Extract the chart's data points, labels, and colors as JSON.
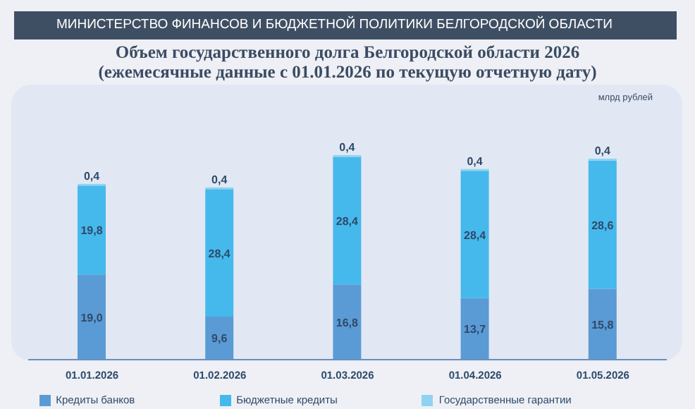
{
  "chart_data": {
    "type": "bar",
    "stacked": true,
    "title": "Объем государственного долга Белгородской области 2026",
    "subtitle": "(ежемесячные данные с 01.01.2026 по текущую отчетную дату)",
    "annotations": [
      "МИНИСТЕРСТВО ФИНАНСОВ И БЮДЖЕТНОЙ ПОЛИТИКИ БЕЛГОРОДСКОЙ ОБЛАСТИ",
      "млрд рублей"
    ],
    "categories": [
      "01.01.2026",
      "01.02.2026",
      "01.03.2026",
      "01.04.2026",
      "01.05.2026"
    ],
    "series": [
      {
        "name": "Кредиты банков",
        "color": "#5b9bd5",
        "values": [
          19.0,
          9.6,
          16.8,
          13.7,
          15.8
        ],
        "value_labels": [
          "19,0",
          "9,6",
          "16,8",
          "13,7",
          "15,8"
        ]
      },
      {
        "name": "Бюджетные кредиты",
        "color": "#45b9ec",
        "values": [
          19.8,
          28.4,
          28.4,
          28.4,
          28.6
        ],
        "value_labels": [
          "19,8",
          "28,4",
          "28,4",
          "28,4",
          "28,6"
        ]
      },
      {
        "name": "Государственные гарантии",
        "color": "#8fd3f0",
        "values": [
          0.4,
          0.4,
          0.4,
          0.4,
          0.4
        ],
        "value_labels": [
          "0,4",
          "0,4",
          "0,4",
          "0,4",
          "0,4"
        ]
      }
    ],
    "legend": "bottom",
    "grid": false
  }
}
